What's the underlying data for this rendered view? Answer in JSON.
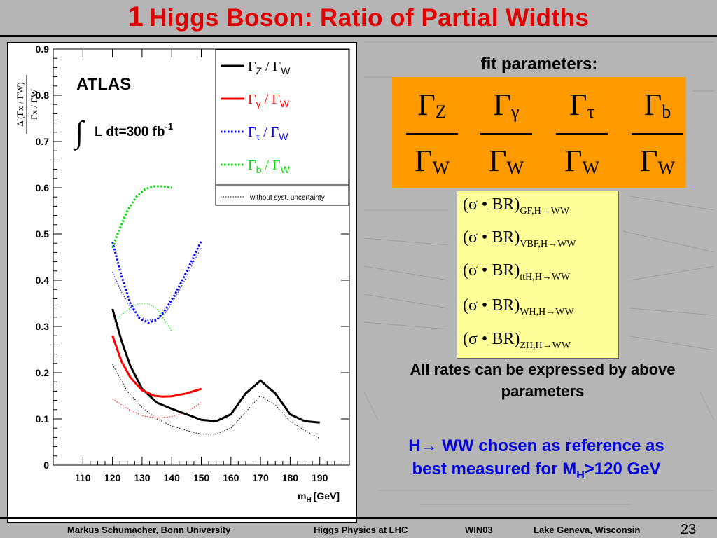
{
  "slide": {
    "title_number": "1",
    "title_text": "Higgs Boson: Ratio of Partial Widths"
  },
  "fit": {
    "title": "fit parameters:",
    "params": [
      {
        "num": "Γ",
        "num_sub": "Z",
        "den": "Γ",
        "den_sub": "W"
      },
      {
        "num": "Γ",
        "num_sub": "γ",
        "den": "Γ",
        "den_sub": "W"
      },
      {
        "num": "Γ",
        "num_sub": "τ",
        "den": "Γ",
        "den_sub": "W"
      },
      {
        "num": "Γ",
        "num_sub": "b",
        "den": "Γ",
        "den_sub": "W"
      }
    ]
  },
  "rates": [
    {
      "text": "(σ • BR)",
      "sub": "GF,H→WW"
    },
    {
      "text": "(σ • BR)",
      "sub": "VBF,H→WW"
    },
    {
      "text": "(σ • BR)",
      "sub": "ttH,H→WW"
    },
    {
      "text": "(σ • BR)",
      "sub": "WH,H→WW"
    },
    {
      "text": "(σ • BR)",
      "sub": "ZH,H→WW"
    }
  ],
  "notes": {
    "rates_text": "All rates can be expressed by above parameters",
    "reference_line1": "H→ WW chosen as reference as",
    "reference_line2_a": "best measured for M",
    "reference_line2_sub": "H",
    "reference_line2_b": ">120 GeV"
  },
  "footer": {
    "author": "Markus Schumacher,  Bonn University",
    "talk": "Higgs Physics at LHC",
    "conf": "WIN03",
    "place": "Lake Geneva, Wisconsin",
    "page": "23"
  },
  "colors": {
    "title": "#e00000",
    "fit_box": "#ff9a00",
    "rates_box": "#ffff99",
    "note_blue": "#0000e0",
    "series_z": "#000000",
    "series_gamma": "#ff0000",
    "series_tau": "#0000ff",
    "series_b": "#00dd00"
  },
  "chart_data": {
    "type": "line",
    "experiment_label": "ATLAS",
    "lumi_label": "L dt=300 fb",
    "lumi_sup": "-1",
    "xlabel": "m",
    "xlabel_sub": "H",
    "xlabel_unit": "[GeV]",
    "ylabel_num": "Δ (Γx / ΓW)",
    "ylabel_den": "Γx / ΓW",
    "xlim": [
      100,
      200
    ],
    "ylim": [
      0,
      0.9
    ],
    "x_ticks": [
      110,
      120,
      130,
      140,
      150,
      160,
      170,
      180,
      190
    ],
    "y_ticks": [
      0,
      0.1,
      0.2,
      0.3,
      0.4,
      0.5,
      0.6,
      0.7,
      0.8,
      0.9
    ],
    "y_tick_labels": [
      "0",
      "0.1",
      "0.2",
      "0.3",
      "0.4",
      "0.5",
      "0.6",
      "0.7",
      "0.8",
      "0.9"
    ],
    "legend_note": "without syst. uncertainty",
    "series": [
      {
        "name": "ΓZ / ΓW",
        "label_main": "Γ",
        "label_sub": "Z",
        "style": "solid",
        "color": "#000000",
        "x": [
          120,
          123,
          126,
          130,
          135,
          140,
          145,
          150,
          155,
          160,
          165,
          170,
          175,
          180,
          185,
          190
        ],
        "y": [
          0.338,
          0.27,
          0.215,
          0.165,
          0.135,
          0.122,
          0.11,
          0.098,
          0.095,
          0.11,
          0.155,
          0.183,
          0.155,
          0.11,
          0.095,
          0.092
        ]
      },
      {
        "name": "Γγ / ΓW",
        "label_main": "Γ",
        "label_sub": "γ",
        "style": "solid",
        "color": "#ff0000",
        "x": [
          120,
          123,
          126,
          130,
          134,
          137,
          140,
          145,
          150
        ],
        "y": [
          0.28,
          0.225,
          0.19,
          0.162,
          0.15,
          0.148,
          0.149,
          0.155,
          0.165
        ]
      },
      {
        "name": "Γτ / ΓW",
        "label_main": "Γ",
        "label_sub": "τ",
        "style": "dotted",
        "color": "#0000ff",
        "x": [
          120,
          123,
          126,
          129,
          132,
          135,
          138,
          141,
          144,
          147,
          150
        ],
        "y": [
          0.483,
          0.41,
          0.35,
          0.318,
          0.308,
          0.314,
          0.337,
          0.368,
          0.405,
          0.445,
          0.485
        ]
      },
      {
        "name": "Γb / ΓW",
        "label_main": "Γ",
        "label_sub": "b",
        "style": "dotted",
        "color": "#00dd00",
        "x": [
          120,
          122,
          125,
          128,
          131,
          134,
          137,
          140
        ],
        "y": [
          0.47,
          0.505,
          0.55,
          0.58,
          0.597,
          0.603,
          0.603,
          0.6
        ]
      }
    ],
    "series_no_syst": [
      {
        "color": "#000000",
        "x": [
          120,
          125,
          130,
          135,
          140,
          145,
          150,
          155,
          160,
          165,
          170,
          175,
          180,
          185,
          190
        ],
        "y": [
          0.218,
          0.16,
          0.125,
          0.1,
          0.085,
          0.075,
          0.067,
          0.067,
          0.08,
          0.115,
          0.15,
          0.13,
          0.095,
          0.075,
          0.058
        ]
      },
      {
        "color": "#ff0000",
        "x": [
          120,
          125,
          130,
          135,
          140,
          145,
          150
        ],
        "y": [
          0.143,
          0.122,
          0.107,
          0.102,
          0.105,
          0.115,
          0.135
        ]
      },
      {
        "color": "#0000ff",
        "x": [
          120,
          123,
          126,
          129,
          132,
          135,
          138,
          141,
          144,
          147,
          150
        ],
        "y": [
          0.418,
          0.375,
          0.342,
          0.322,
          0.313,
          0.316,
          0.33,
          0.36,
          0.395,
          0.435,
          0.47
        ]
      },
      {
        "color": "#00dd00",
        "x": [
          120,
          123,
          126,
          129,
          132,
          135,
          138,
          140
        ],
        "y": [
          0.305,
          0.325,
          0.34,
          0.35,
          0.35,
          0.338,
          0.31,
          0.29
        ]
      }
    ]
  }
}
